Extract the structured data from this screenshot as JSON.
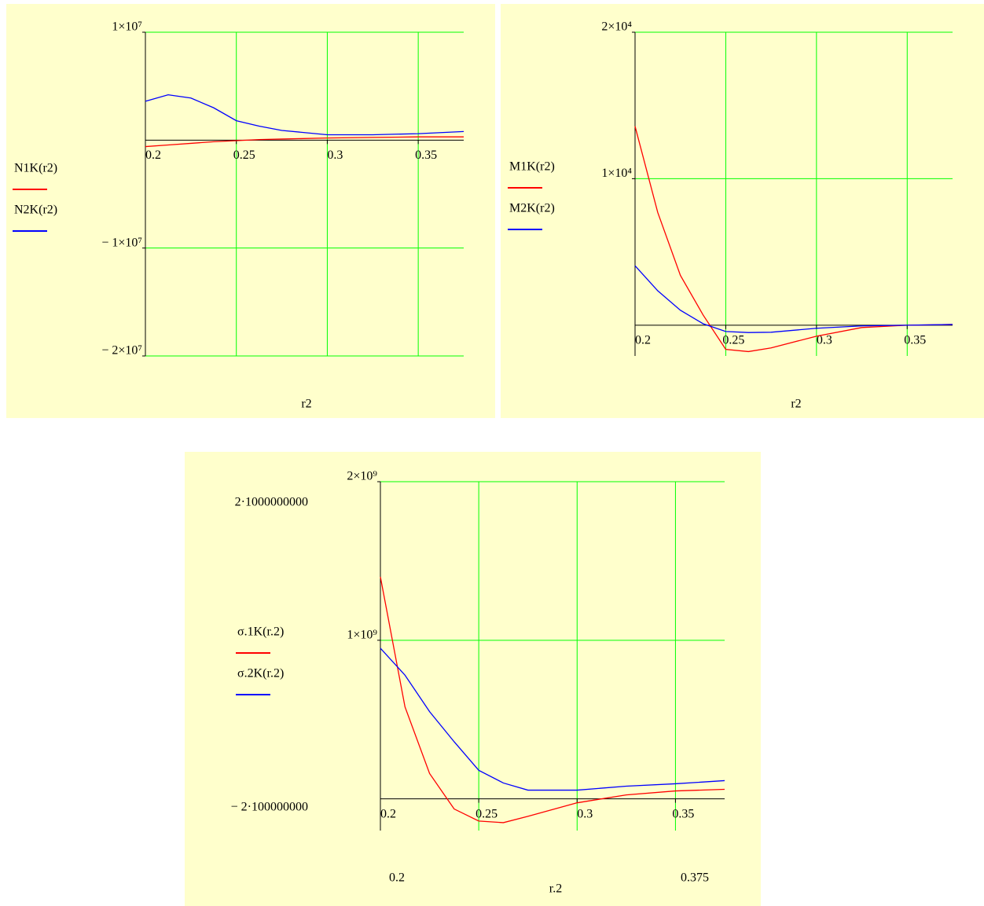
{
  "chart_data": [
    {
      "type": "line",
      "xlabel": "r2",
      "x": [
        0.2,
        0.2125,
        0.225,
        0.2375,
        0.25,
        0.2625,
        0.275,
        0.3,
        0.325,
        0.35,
        0.375
      ],
      "xlim": [
        0.2,
        0.375
      ],
      "xticks": [
        0.2,
        0.25,
        0.3,
        0.35
      ],
      "ylim": [
        -20000000,
        10000000
      ],
      "yticks": [
        {
          "value": -20000000,
          "label": "− 2×10⁷"
        },
        {
          "value": -10000000,
          "label": "− 1×10⁷"
        },
        {
          "value": 10000000,
          "label": "1×10⁷"
        }
      ],
      "grid": true,
      "grid_color": "#00ff00",
      "series": [
        {
          "name": "N1K(r2)",
          "color": "#ff0000",
          "values": [
            -600000,
            -450000,
            -300000,
            -150000,
            -50000,
            50000,
            100000,
            200000,
            250000,
            300000,
            300000
          ]
        },
        {
          "name": "N2K(r2)",
          "color": "#0000ff",
          "values": [
            3600000,
            4200000,
            3900000,
            3000000,
            1800000,
            1300000,
            900000,
            500000,
            500000,
            600000,
            800000
          ]
        }
      ]
    },
    {
      "type": "line",
      "xlabel": "r2",
      "x": [
        0.2,
        0.2125,
        0.225,
        0.2375,
        0.25,
        0.2625,
        0.275,
        0.3,
        0.325,
        0.35,
        0.375
      ],
      "xlim": [
        0.2,
        0.375
      ],
      "xticks": [
        0.2,
        0.25,
        0.3,
        0.35
      ],
      "ylim": [
        -2100,
        20000
      ],
      "yticks": [
        {
          "value": 10000,
          "label": "1×10⁴"
        },
        {
          "value": 20000,
          "label": "2×10⁴"
        }
      ],
      "grid": true,
      "grid_color": "#00ff00",
      "series": [
        {
          "name": "M1K(r2)",
          "color": "#ff0000",
          "values": [
            13580,
            7700,
            3400,
            700,
            -1650,
            -1800,
            -1550,
            -750,
            -160,
            0,
            50
          ]
        },
        {
          "name": "M2K(r2)",
          "color": "#0000ff",
          "values": [
            4060,
            2350,
            1020,
            100,
            -430,
            -500,
            -480,
            -210,
            -50,
            0,
            50
          ]
        }
      ]
    },
    {
      "type": "line",
      "xlabel": "r.2",
      "x": [
        0.2,
        0.2125,
        0.225,
        0.2375,
        0.25,
        0.2625,
        0.275,
        0.3,
        0.325,
        0.35,
        0.375
      ],
      "xlim": [
        0.2,
        0.375
      ],
      "xlim_labels": [
        "0.2",
        "0.375"
      ],
      "xticks": [
        0.2,
        0.25,
        0.3,
        0.35
      ],
      "ylim": [
        -200000000,
        2000000000
      ],
      "ylim_labels": [
        "− 2·100000000",
        "2·1000000000"
      ],
      "yticks": [
        {
          "value": 1000000000,
          "label": "1×10⁹"
        },
        {
          "value": 2000000000,
          "label": "2×10⁹"
        }
      ],
      "grid": true,
      "grid_color": "#00ff00",
      "series": [
        {
          "name": "σ.1K(r.2)",
          "color": "#ff0000",
          "values": [
            1400000000,
            580000000,
            160000000,
            -64000000,
            -140000000,
            -150000000,
            -110000000,
            -25000000,
            25000000,
            50000000,
            60000000
          ]
        },
        {
          "name": "σ.2K(r.2)",
          "color": "#0000ff",
          "values": [
            950000000,
            780000000,
            550000000,
            360000000,
            180000000,
            100000000,
            55000000,
            55000000,
            80000000,
            95000000,
            115000000
          ]
        }
      ]
    }
  ]
}
